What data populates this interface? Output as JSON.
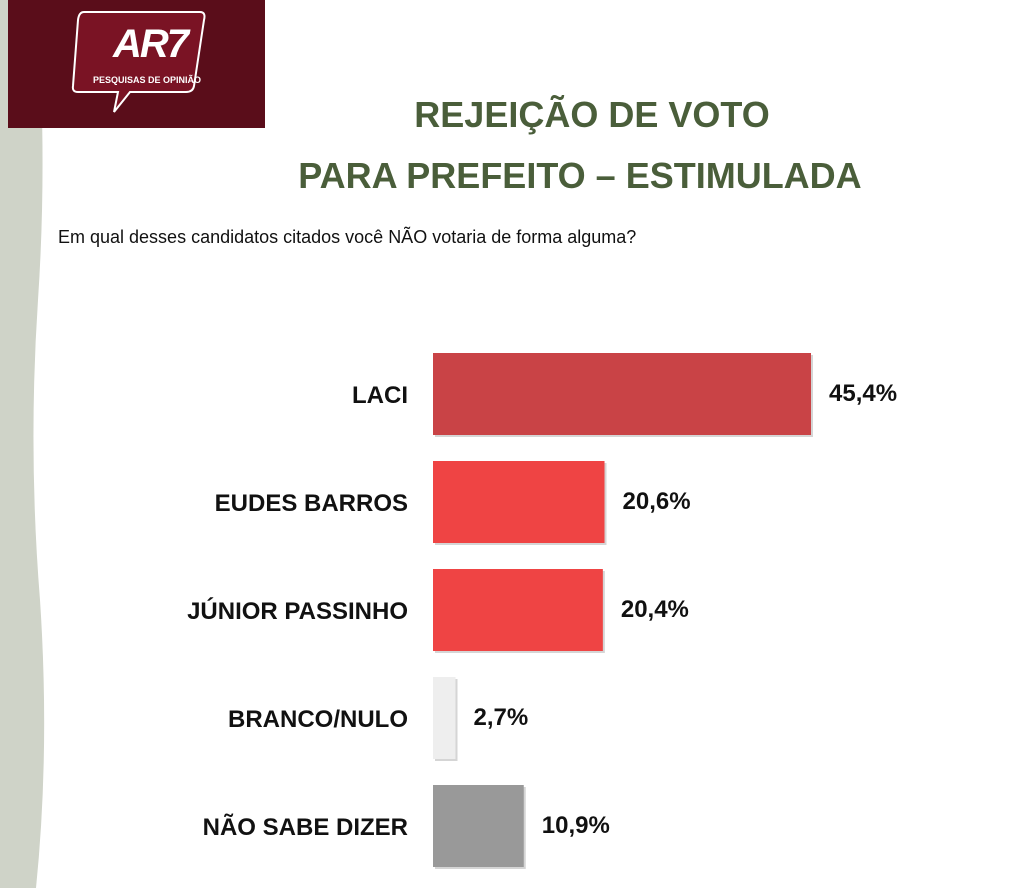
{
  "logo": {
    "brand": "AR7",
    "tagline": "PESQUISAS DE OPINIÃO"
  },
  "title_line1": "REJEIÇÃO DE VOTO",
  "title_line2": "PARA PREFEITO – ESTIMULADA",
  "question": "Em qual desses candidatos citados você NÃO votaria de forma alguma?",
  "colors": {
    "logo_bg": "#5a0d1a",
    "title": "#4a5e3a",
    "left_band": "#cfd3c8"
  },
  "chart_data": {
    "type": "bar",
    "orientation": "horizontal",
    "categories": [
      "LACI",
      "EUDES BARROS",
      "JÚNIOR PASSINHO",
      "BRANCO/NULO",
      "NÃO SABE DIZER"
    ],
    "values": [
      45.4,
      20.6,
      20.4,
      2.7,
      10.9
    ],
    "value_labels": [
      "45,4%",
      "20,6%",
      "20,4%",
      "2,7%",
      "10,9%"
    ],
    "bar_colors": [
      "#c94346",
      "#ef4444",
      "#ef4444",
      "#eeeeee",
      "#999999"
    ],
    "unit": "%",
    "xlim": [
      0,
      50
    ],
    "grid": false
  }
}
